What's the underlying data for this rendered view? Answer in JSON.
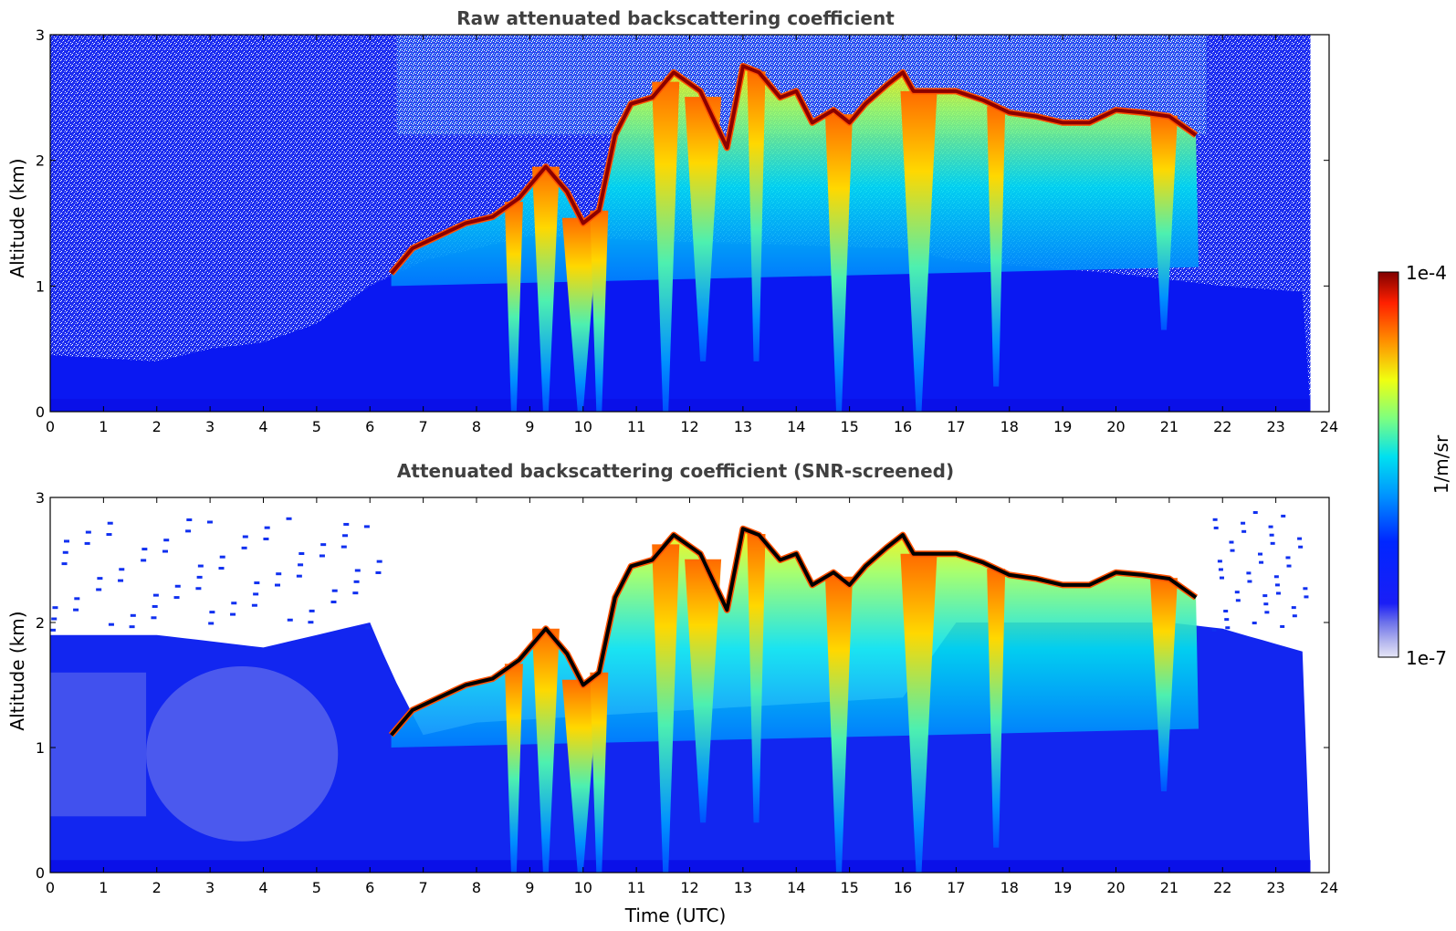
{
  "chart_data": [
    {
      "type": "heatmap",
      "title": "Raw attenuated backscattering coefficient",
      "xlabel": "",
      "ylabel": "Altitude (km)",
      "xlim": [
        0,
        24
      ],
      "ylim": [
        0,
        3
      ],
      "xticks": [
        "0",
        "1",
        "2",
        "3",
        "4",
        "5",
        "6",
        "7",
        "8",
        "9",
        "10",
        "11",
        "12",
        "13",
        "14",
        "15",
        "16",
        "17",
        "18",
        "19",
        "20",
        "21",
        "22",
        "23",
        "24"
      ],
      "yticks": [
        "0",
        "1",
        "2",
        "3"
      ],
      "data_end_time": 23.65,
      "colorscale": "jet",
      "background": {
        "near_surface_layer_top_km": 0.1,
        "aerosol_layer_top_km_by_hour": [
          [
            0,
            0.45
          ],
          [
            2,
            0.4
          ],
          [
            3,
            0.5
          ],
          [
            4,
            0.55
          ],
          [
            5,
            0.7
          ],
          [
            6,
            1.0
          ],
          [
            7,
            1.2
          ],
          [
            8,
            1.3
          ],
          [
            9,
            1.4
          ],
          [
            12,
            1.35
          ],
          [
            16,
            1.3
          ],
          [
            17,
            1.2
          ],
          [
            20,
            1.1
          ],
          [
            22,
            1.0
          ],
          [
            23.65,
            0.95
          ]
        ],
        "noise_level": "high above aerosol layer"
      },
      "cloud_base_km": [
        [
          6.4,
          1.1
        ],
        [
          6.8,
          1.3
        ],
        [
          7.3,
          1.4
        ],
        [
          7.8,
          1.5
        ],
        [
          8.3,
          1.55
        ],
        [
          8.8,
          1.7
        ],
        [
          9.3,
          1.95
        ],
        [
          9.7,
          1.75
        ],
        [
          10.0,
          1.5
        ],
        [
          10.3,
          1.6
        ],
        [
          10.6,
          2.2
        ],
        [
          10.9,
          2.45
        ],
        [
          11.3,
          2.5
        ],
        [
          11.7,
          2.7
        ],
        [
          12.2,
          2.55
        ],
        [
          12.7,
          2.1
        ],
        [
          13.0,
          2.75
        ],
        [
          13.3,
          2.7
        ],
        [
          13.7,
          2.5
        ],
        [
          14.0,
          2.55
        ],
        [
          14.3,
          2.3
        ],
        [
          14.7,
          2.4
        ],
        [
          15.0,
          2.3
        ],
        [
          15.3,
          2.45
        ],
        [
          15.7,
          2.6
        ],
        [
          16.0,
          2.7
        ],
        [
          16.2,
          2.55
        ],
        [
          16.5,
          2.55
        ],
        [
          17.0,
          2.55
        ],
        [
          17.5,
          2.48
        ],
        [
          18.0,
          2.38
        ],
        [
          18.5,
          2.35
        ],
        [
          19.0,
          2.3
        ],
        [
          19.5,
          2.3
        ],
        [
          20.0,
          2.4
        ],
        [
          20.5,
          2.38
        ],
        [
          21.0,
          2.35
        ],
        [
          21.5,
          2.2
        ]
      ],
      "precipitation_shafts": [
        {
          "time": 8.7,
          "bottom_km": 0.0
        },
        {
          "time": 9.3,
          "bottom_km": 0.0
        },
        {
          "time": 9.95,
          "bottom_km": 0.0
        },
        {
          "time": 10.3,
          "bottom_km": 0.0
        },
        {
          "time": 11.55,
          "bottom_km": 0.0
        },
        {
          "time": 12.25,
          "bottom_km": 0.4
        },
        {
          "time": 13.25,
          "bottom_km": 0.4
        },
        {
          "time": 14.8,
          "bottom_km": 0.0
        },
        {
          "time": 16.3,
          "bottom_km": 0.0
        },
        {
          "time": 17.75,
          "bottom_km": 0.2
        },
        {
          "time": 20.9,
          "bottom_km": 0.65
        }
      ]
    },
    {
      "type": "heatmap",
      "title": "Attenuated backscattering coefficient (SNR-screened)",
      "xlabel": "Time (UTC)",
      "ylabel": "Altitude (km)",
      "xlim": [
        0,
        24
      ],
      "ylim": [
        0,
        3
      ],
      "xticks": [
        "0",
        "1",
        "2",
        "3",
        "4",
        "5",
        "6",
        "7",
        "8",
        "9",
        "10",
        "11",
        "12",
        "13",
        "14",
        "15",
        "16",
        "17",
        "18",
        "19",
        "20",
        "21",
        "22",
        "23",
        "24"
      ],
      "yticks": [
        "0",
        "1",
        "2",
        "3"
      ],
      "data_end_time": 23.65,
      "colorscale": "jet",
      "screened_boundary_layer_top_km_by_hour": [
        [
          0,
          1.9
        ],
        [
          2,
          1.9
        ],
        [
          3,
          1.85
        ],
        [
          4,
          1.8
        ],
        [
          5,
          1.9
        ],
        [
          6,
          2.0
        ],
        [
          6.4,
          1.6
        ],
        [
          7,
          1.1
        ],
        [
          8,
          1.2
        ],
        [
          12,
          1.3
        ],
        [
          16,
          1.4
        ],
        [
          17,
          2.0
        ],
        [
          21,
          2.0
        ],
        [
          22,
          1.95
        ],
        [
          23.65,
          1.75
        ]
      ],
      "cloud_tops_black": "dense cloud layer saturates to black at cloud top"
    }
  ],
  "colorbar": {
    "label": "1/m/sr",
    "max_label": "1e-4",
    "min_label": "1e-7",
    "range": [
      1e-07,
      0.0001
    ],
    "scale": "log",
    "placement": "right"
  },
  "colors": {
    "background_blue": "#0a14f0",
    "aerosol_blue": "#1a2ee6",
    "low_blue": "#4e5cf0",
    "cloud_red": "#8b0000",
    "title_gray": "#404040"
  }
}
